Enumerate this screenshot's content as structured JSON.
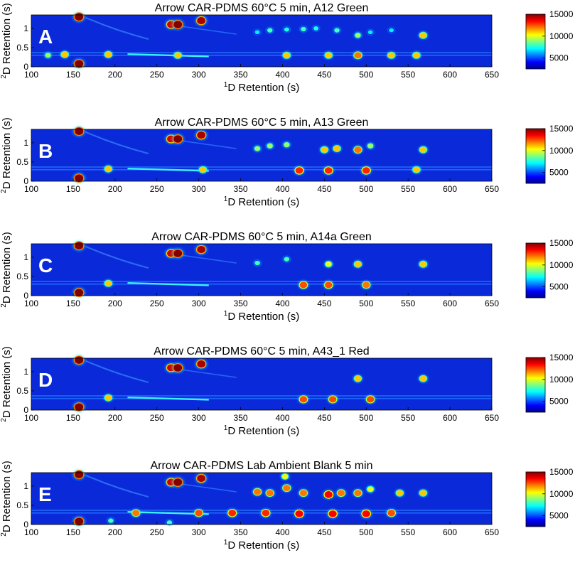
{
  "figure": {
    "colorbar_ticks": [
      "15000",
      "10000",
      "5000"
    ],
    "panel_letters": [
      "A",
      "B",
      "C",
      "D",
      "E"
    ]
  },
  "chart_data": [
    {
      "type": "heatmap",
      "panel": "A",
      "title": "Arrow CAR-PDMS 60°C 5 min, A12 Green",
      "xlabel_sup": "1",
      "xlabel": "D Retention (s)",
      "ylabel_sup": "2",
      "ylabel": "D Retention (s)",
      "xlim": [
        100,
        650
      ],
      "ylim": [
        0,
        1.35
      ],
      "xticks": [
        100,
        150,
        200,
        250,
        300,
        350,
        400,
        450,
        500,
        550,
        600,
        650
      ],
      "yticks": [
        0,
        0.5,
        1
      ],
      "ytick_labels": [
        "0",
        "0.5",
        "1"
      ],
      "colorbar": {
        "min": 2500,
        "max": 15000,
        "ticks": [
          5000,
          10000,
          15000
        ]
      },
      "peaks": [
        {
          "x": 157,
          "y": 1.3,
          "z": 15000
        },
        {
          "x": 157,
          "y": 0.08,
          "z": 15000
        },
        {
          "x": 267,
          "y": 1.1,
          "z": 14000
        },
        {
          "x": 275,
          "y": 1.1,
          "z": 15000
        },
        {
          "x": 303,
          "y": 1.2,
          "z": 14500
        },
        {
          "x": 370,
          "y": 0.9,
          "z": 7000
        },
        {
          "x": 385,
          "y": 0.95,
          "z": 8000
        },
        {
          "x": 405,
          "y": 0.97,
          "z": 7500
        },
        {
          "x": 425,
          "y": 0.98,
          "z": 8000
        },
        {
          "x": 440,
          "y": 1.0,
          "z": 7500
        },
        {
          "x": 465,
          "y": 0.95,
          "z": 8000
        },
        {
          "x": 490,
          "y": 0.82,
          "z": 9000
        },
        {
          "x": 505,
          "y": 0.9,
          "z": 7000
        },
        {
          "x": 530,
          "y": 0.95,
          "z": 7000
        },
        {
          "x": 568,
          "y": 0.82,
          "z": 11000
        },
        {
          "x": 120,
          "y": 0.3,
          "z": 9000
        },
        {
          "x": 140,
          "y": 0.32,
          "z": 11000
        },
        {
          "x": 192,
          "y": 0.32,
          "z": 11000
        },
        {
          "x": 275,
          "y": 0.3,
          "z": 11000
        },
        {
          "x": 405,
          "y": 0.3,
          "z": 11000
        },
        {
          "x": 455,
          "y": 0.3,
          "z": 11000
        },
        {
          "x": 490,
          "y": 0.3,
          "z": 12000
        },
        {
          "x": 530,
          "y": 0.3,
          "z": 11000
        },
        {
          "x": 560,
          "y": 0.3,
          "z": 11000
        }
      ]
    },
    {
      "type": "heatmap",
      "panel": "B",
      "title": "Arrow CAR-PDMS 60°C 5 min, A13 Green",
      "xlabel_sup": "1",
      "xlabel": "D Retention (s)",
      "ylabel_sup": "2",
      "ylabel": "D Retention (s)",
      "xlim": [
        100,
        650
      ],
      "ylim": [
        0,
        1.35
      ],
      "xticks": [
        100,
        150,
        200,
        250,
        300,
        350,
        400,
        450,
        500,
        550,
        600,
        650
      ],
      "yticks": [
        0,
        0.5,
        1
      ],
      "ytick_labels": [
        "0",
        "0.5",
        "1"
      ],
      "colorbar": {
        "min": 2500,
        "max": 15000,
        "ticks": [
          5000,
          10000,
          15000
        ]
      },
      "peaks": [
        {
          "x": 157,
          "y": 1.3,
          "z": 15000
        },
        {
          "x": 157,
          "y": 0.08,
          "z": 15000
        },
        {
          "x": 267,
          "y": 1.1,
          "z": 14000
        },
        {
          "x": 275,
          "y": 1.1,
          "z": 15000
        },
        {
          "x": 303,
          "y": 1.2,
          "z": 14500
        },
        {
          "x": 370,
          "y": 0.85,
          "z": 9000
        },
        {
          "x": 385,
          "y": 0.92,
          "z": 9000
        },
        {
          "x": 405,
          "y": 0.95,
          "z": 9000
        },
        {
          "x": 450,
          "y": 0.82,
          "z": 11000
        },
        {
          "x": 465,
          "y": 0.85,
          "z": 11000
        },
        {
          "x": 490,
          "y": 0.82,
          "z": 12000
        },
        {
          "x": 505,
          "y": 0.92,
          "z": 9000
        },
        {
          "x": 568,
          "y": 0.82,
          "z": 11000
        },
        {
          "x": 192,
          "y": 0.32,
          "z": 11000
        },
        {
          "x": 305,
          "y": 0.3,
          "z": 11000
        },
        {
          "x": 420,
          "y": 0.28,
          "z": 13000
        },
        {
          "x": 455,
          "y": 0.28,
          "z": 13000
        },
        {
          "x": 500,
          "y": 0.28,
          "z": 13000
        },
        {
          "x": 560,
          "y": 0.3,
          "z": 11000
        }
      ]
    },
    {
      "type": "heatmap",
      "panel": "C",
      "title": "Arrow CAR-PDMS 60°C 5 min, A14a Green",
      "xlabel_sup": "1",
      "xlabel": "D Retention (s)",
      "ylabel_sup": "2",
      "ylabel": "D Retention (s)",
      "xlim": [
        100,
        650
      ],
      "ylim": [
        0,
        1.35
      ],
      "xticks": [
        100,
        150,
        200,
        250,
        300,
        350,
        400,
        450,
        500,
        550,
        600,
        650
      ],
      "yticks": [
        0,
        0.5,
        1
      ],
      "ytick_labels": [
        "0",
        "0.5",
        "1"
      ],
      "colorbar": {
        "min": 2500,
        "max": 15000,
        "ticks": [
          5000,
          10000,
          15000
        ]
      },
      "peaks": [
        {
          "x": 157,
          "y": 1.3,
          "z": 15000
        },
        {
          "x": 157,
          "y": 0.08,
          "z": 15000
        },
        {
          "x": 267,
          "y": 1.1,
          "z": 14000
        },
        {
          "x": 275,
          "y": 1.1,
          "z": 15000
        },
        {
          "x": 303,
          "y": 1.2,
          "z": 14500
        },
        {
          "x": 370,
          "y": 0.85,
          "z": 8000
        },
        {
          "x": 405,
          "y": 0.95,
          "z": 8000
        },
        {
          "x": 455,
          "y": 0.82,
          "z": 10000
        },
        {
          "x": 490,
          "y": 0.82,
          "z": 11000
        },
        {
          "x": 568,
          "y": 0.82,
          "z": 11000
        },
        {
          "x": 192,
          "y": 0.32,
          "z": 11000
        },
        {
          "x": 425,
          "y": 0.28,
          "z": 12500
        },
        {
          "x": 455,
          "y": 0.28,
          "z": 12500
        },
        {
          "x": 500,
          "y": 0.28,
          "z": 12000
        }
      ]
    },
    {
      "type": "heatmap",
      "panel": "D",
      "title": "Arrow CAR-PDMS 60°C 5 min, A43_1 Red",
      "xlabel_sup": "1",
      "xlabel": "D Retention (s)",
      "ylabel_sup": "2",
      "ylabel": "D Retention (s)",
      "xlim": [
        100,
        650
      ],
      "ylim": [
        0,
        1.35
      ],
      "xticks": [
        100,
        150,
        200,
        250,
        300,
        350,
        400,
        450,
        500,
        550,
        600,
        650
      ],
      "yticks": [
        0,
        0.5,
        1
      ],
      "ytick_labels": [
        "0",
        "0.5",
        "1"
      ],
      "colorbar": {
        "min": 2500,
        "max": 15000,
        "ticks": [
          5000,
          10000,
          15000
        ]
      },
      "peaks": [
        {
          "x": 157,
          "y": 1.3,
          "z": 15000
        },
        {
          "x": 157,
          "y": 0.08,
          "z": 15000
        },
        {
          "x": 267,
          "y": 1.1,
          "z": 14000
        },
        {
          "x": 275,
          "y": 1.1,
          "z": 15000
        },
        {
          "x": 303,
          "y": 1.2,
          "z": 14500
        },
        {
          "x": 490,
          "y": 0.82,
          "z": 11000
        },
        {
          "x": 568,
          "y": 0.82,
          "z": 11000
        },
        {
          "x": 192,
          "y": 0.32,
          "z": 11000
        },
        {
          "x": 425,
          "y": 0.28,
          "z": 12500
        },
        {
          "x": 460,
          "y": 0.28,
          "z": 12500
        },
        {
          "x": 505,
          "y": 0.28,
          "z": 12500
        }
      ]
    },
    {
      "type": "heatmap",
      "panel": "E",
      "title": "Arrow CAR-PDMS Lab Ambient Blank 5 min",
      "xlabel_sup": "1",
      "xlabel": "D Retention (s)",
      "ylabel_sup": "2",
      "ylabel": "D Retention (s)",
      "xlim": [
        100,
        650
      ],
      "ylim": [
        0,
        1.35
      ],
      "xticks": [
        100,
        150,
        200,
        250,
        300,
        350,
        400,
        450,
        500,
        550,
        600,
        650
      ],
      "yticks": [
        0,
        0.5,
        1
      ],
      "ytick_labels": [
        "0",
        "0.5",
        "1"
      ],
      "colorbar": {
        "min": 2500,
        "max": 15000,
        "ticks": [
          5000,
          10000,
          15000
        ]
      },
      "peaks": [
        {
          "x": 157,
          "y": 1.3,
          "z": 15000
        },
        {
          "x": 157,
          "y": 0.08,
          "z": 15000
        },
        {
          "x": 267,
          "y": 1.1,
          "z": 14000
        },
        {
          "x": 275,
          "y": 1.1,
          "z": 15000
        },
        {
          "x": 303,
          "y": 1.2,
          "z": 14500
        },
        {
          "x": 370,
          "y": 0.85,
          "z": 12000
        },
        {
          "x": 385,
          "y": 0.82,
          "z": 12000
        },
        {
          "x": 403,
          "y": 1.25,
          "z": 10000
        },
        {
          "x": 405,
          "y": 0.95,
          "z": 12000
        },
        {
          "x": 425,
          "y": 0.82,
          "z": 12000
        },
        {
          "x": 455,
          "y": 0.78,
          "z": 13500
        },
        {
          "x": 470,
          "y": 0.82,
          "z": 12000
        },
        {
          "x": 490,
          "y": 0.82,
          "z": 12000
        },
        {
          "x": 505,
          "y": 0.92,
          "z": 10000
        },
        {
          "x": 540,
          "y": 0.82,
          "z": 11000
        },
        {
          "x": 568,
          "y": 0.82,
          "z": 11000
        },
        {
          "x": 195,
          "y": 0.1,
          "z": 8000
        },
        {
          "x": 265,
          "y": 0.05,
          "z": 8000
        },
        {
          "x": 225,
          "y": 0.3,
          "z": 12000
        },
        {
          "x": 300,
          "y": 0.3,
          "z": 12500
        },
        {
          "x": 340,
          "y": 0.3,
          "z": 13000
        },
        {
          "x": 380,
          "y": 0.3,
          "z": 13000
        },
        {
          "x": 420,
          "y": 0.28,
          "z": 13500
        },
        {
          "x": 460,
          "y": 0.28,
          "z": 13500
        },
        {
          "x": 500,
          "y": 0.28,
          "z": 13500
        },
        {
          "x": 530,
          "y": 0.3,
          "z": 12500
        }
      ]
    }
  ]
}
